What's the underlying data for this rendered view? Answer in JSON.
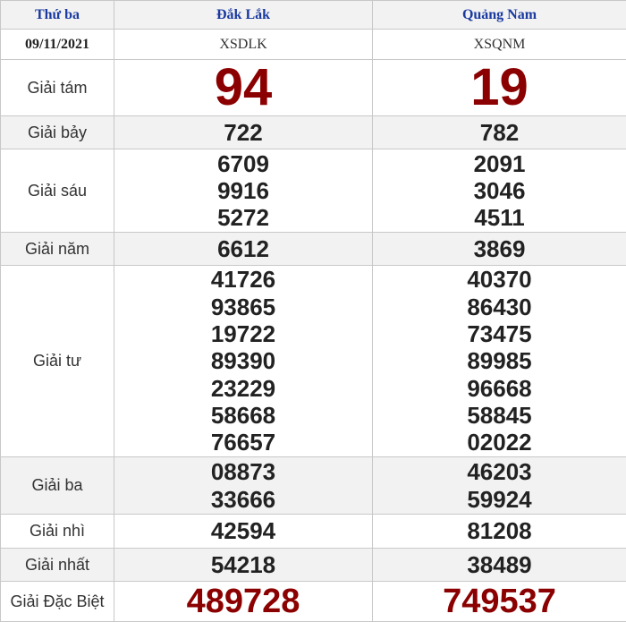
{
  "header": {
    "day": "Thứ ba",
    "provinces": [
      "Đắk Lắk",
      "Quảng Nam"
    ]
  },
  "subheader": {
    "date": "09/11/2021",
    "codes": [
      "XSDLK",
      "XSQNM"
    ]
  },
  "prizes": [
    {
      "label": "Giải tám",
      "style": "big",
      "gray": false,
      "values": [
        [
          "94"
        ],
        [
          "19"
        ]
      ]
    },
    {
      "label": "Giải bảy",
      "style": "num",
      "gray": true,
      "values": [
        [
          "722"
        ],
        [
          "782"
        ]
      ]
    },
    {
      "label": "Giải sáu",
      "style": "num",
      "gray": false,
      "values": [
        [
          "6709",
          "9916",
          "5272"
        ],
        [
          "2091",
          "3046",
          "4511"
        ]
      ]
    },
    {
      "label": "Giải năm",
      "style": "num",
      "gray": true,
      "values": [
        [
          "6612"
        ],
        [
          "3869"
        ]
      ]
    },
    {
      "label": "Giải tư",
      "style": "num",
      "gray": false,
      "values": [
        [
          "41726",
          "93865",
          "19722",
          "89390",
          "23229",
          "58668",
          "76657"
        ],
        [
          "40370",
          "86430",
          "73475",
          "89985",
          "96668",
          "58845",
          "02022"
        ]
      ]
    },
    {
      "label": "Giải ba",
      "style": "num",
      "gray": true,
      "values": [
        [
          "08873",
          "33666"
        ],
        [
          "46203",
          "59924"
        ]
      ]
    },
    {
      "label": "Giải nhì",
      "style": "num",
      "gray": false,
      "values": [
        [
          "42594"
        ],
        [
          "81208"
        ]
      ]
    },
    {
      "label": "Giải nhất",
      "style": "num",
      "gray": true,
      "values": [
        [
          "54218"
        ],
        [
          "38489"
        ]
      ]
    },
    {
      "label": "Giải Đặc Biệt",
      "style": "sp",
      "gray": false,
      "values": [
        [
          "489728"
        ],
        [
          "749537"
        ]
      ]
    }
  ],
  "colors": {
    "header_text": "#1a3aa0",
    "highlight": "#8b0000",
    "row_alt": "#f2f2f2"
  }
}
